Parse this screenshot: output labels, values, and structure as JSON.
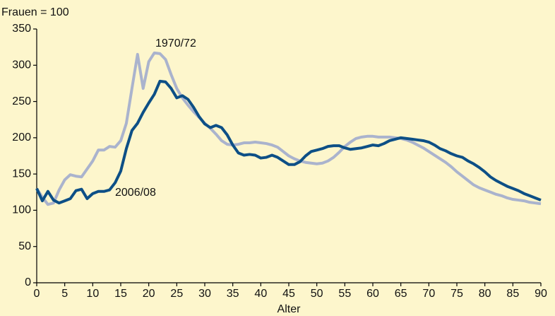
{
  "chart_data": {
    "type": "line",
    "ylabel": "Frauen = 100",
    "xlabel": "Alter",
    "x": [
      0,
      1,
      2,
      3,
      4,
      5,
      6,
      7,
      8,
      9,
      10,
      11,
      12,
      13,
      14,
      15,
      16,
      17,
      18,
      19,
      20,
      21,
      22,
      23,
      24,
      25,
      26,
      27,
      28,
      29,
      30,
      31,
      32,
      33,
      34,
      35,
      36,
      37,
      38,
      39,
      40,
      41,
      42,
      43,
      44,
      45,
      46,
      47,
      48,
      49,
      50,
      51,
      52,
      53,
      54,
      55,
      56,
      57,
      58,
      59,
      60,
      61,
      62,
      63,
      64,
      65,
      66,
      67,
      68,
      69,
      70,
      71,
      72,
      73,
      74,
      75,
      76,
      77,
      78,
      79,
      80,
      81,
      82,
      83,
      84,
      85,
      86,
      87,
      88,
      89,
      90
    ],
    "series": [
      {
        "name": "1970/72",
        "color": "#aab3cd",
        "values": [
          130,
          118,
          108,
          110,
          128,
          142,
          149,
          147,
          146,
          157,
          168,
          183,
          183,
          188,
          187,
          196,
          220,
          268,
          315,
          268,
          305,
          317,
          316,
          308,
          287,
          268,
          255,
          245,
          236,
          228,
          220,
          213,
          205,
          196,
          191,
          190,
          191,
          193,
          193,
          194,
          193,
          192,
          190,
          187,
          181,
          175,
          171,
          168,
          166,
          165,
          164,
          165,
          168,
          173,
          180,
          188,
          194,
          199,
          201,
          202,
          202,
          201,
          201,
          201,
          200,
          199,
          197,
          194,
          190,
          186,
          181,
          176,
          171,
          166,
          160,
          153,
          147,
          141,
          135,
          131,
          128,
          125,
          122,
          120,
          117,
          115,
          114,
          113,
          111,
          110,
          109
        ]
      },
      {
        "name": "2006/08",
        "color": "#0d4f86",
        "values": [
          130,
          113,
          126,
          114,
          110,
          113,
          116,
          127,
          129,
          116,
          123,
          126,
          126,
          128,
          138,
          154,
          185,
          210,
          220,
          235,
          248,
          260,
          278,
          277,
          268,
          255,
          258,
          253,
          242,
          229,
          219,
          214,
          217,
          214,
          204,
          190,
          179,
          176,
          177,
          176,
          172,
          173,
          176,
          173,
          168,
          163,
          163,
          167,
          175,
          181,
          183,
          185,
          188,
          189,
          189,
          186,
          184,
          185,
          186,
          188,
          190,
          189,
          192,
          196,
          198,
          200,
          199,
          198,
          197,
          196,
          194,
          190,
          185,
          182,
          178,
          175,
          173,
          168,
          164,
          159,
          153,
          146,
          141,
          137,
          133,
          130,
          127,
          123,
          120,
          117,
          114
        ]
      }
    ],
    "xlim": [
      0,
      90
    ],
    "xticks": [
      0,
      5,
      10,
      15,
      20,
      25,
      30,
      35,
      40,
      45,
      50,
      55,
      60,
      65,
      70,
      75,
      80,
      85,
      90
    ],
    "ylim": [
      0,
      350
    ],
    "yticks": [
      0,
      50,
      100,
      150,
      200,
      250,
      300,
      350
    ],
    "grid": false
  }
}
